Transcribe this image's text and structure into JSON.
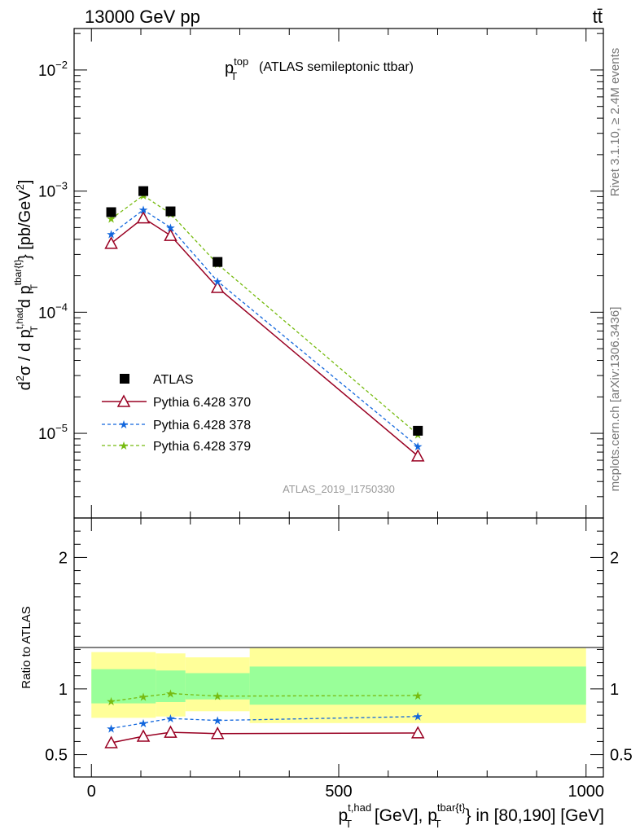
{
  "header": {
    "energy_label": "13000 GeV pp",
    "process_label": "tt̄"
  },
  "side_labels": {
    "rivet": "Rivet 3.1.10, ≥ 2.4M events",
    "mcplots": "mcplots.cern.ch [arXiv:1306.3436]"
  },
  "colors": {
    "atlas": "#000000",
    "p370": "#990022",
    "p378": "#1166dd",
    "p379": "#77bb11",
    "band_outer": "#ffff99",
    "band_inner": "#99ff99"
  },
  "chart_data": {
    "type": "line",
    "title": "(ATLAS semileptonic ttbar)",
    "title_symbol": "p_T^top",
    "analysis_tag": "ATLAS_2019_I1750330",
    "ylabel": "d²σ / d p_T^{t,had} d p_T^{tbar{t}} [pb/GeV²]",
    "xlabel": "p_T^{t,had} [GeV], p_T^{tbar{t}} in [80,190] [GeV]",
    "ratio_ylabel": "Ratio to ATLAS",
    "xlim": [
      -35,
      1035
    ],
    "ylim": [
      2e-06,
      0.022
    ],
    "yscale": "log",
    "ratio_ylim": [
      0.33,
      2.3
    ],
    "main_y_ticks": [
      {
        "value": 0.01,
        "base": "10",
        "exp": "−2"
      },
      {
        "value": 0.001,
        "base": "10",
        "exp": "−3"
      },
      {
        "value": 0.0001,
        "base": "10",
        "exp": "−4"
      },
      {
        "value": 1e-05,
        "base": "10",
        "exp": "−5"
      }
    ],
    "x_ticks": [
      {
        "value": 0,
        "label": "0"
      },
      {
        "value": 500,
        "label": "500"
      },
      {
        "value": 1000,
        "label": "1000"
      }
    ],
    "ratio_y_ticks": [
      {
        "value": 0.5,
        "label": "0.5"
      },
      {
        "value": 1,
        "label": "1"
      },
      {
        "value": 2,
        "label": "2"
      }
    ],
    "x": [
      40,
      105,
      160,
      255,
      660
    ],
    "series": [
      {
        "name": "ATLAS",
        "marker": "square",
        "values": [
          0.00067,
          0.001,
          0.00068,
          0.00026,
          1.05e-05
        ]
      },
      {
        "name": "Pythia 6.428 370",
        "marker": "triangle",
        "values": [
          0.00037,
          0.0006,
          0.00043,
          0.00016,
          6.5e-06
        ]
      },
      {
        "name": "Pythia 6.428 378",
        "marker": "star",
        "values": [
          0.00044,
          0.0007,
          0.0005,
          0.00018,
          7.8e-06
        ]
      },
      {
        "name": "Pythia 6.428 379",
        "marker": "star",
        "values": [
          0.00059,
          0.00092,
          0.00065,
          0.00025,
          9.8e-06
        ]
      }
    ],
    "ratio_series": [
      {
        "name": "Pythia 6.428 370",
        "values": [
          0.59,
          0.64,
          0.67,
          0.66,
          0.665
        ]
      },
      {
        "name": "Pythia 6.428 378",
        "values": [
          0.7,
          0.74,
          0.775,
          0.76,
          0.79
        ]
      },
      {
        "name": "Pythia 6.428 379",
        "values": [
          0.905,
          0.94,
          0.965,
          0.945,
          0.95
        ]
      }
    ],
    "bands": [
      {
        "x0": 0,
        "x1": 130,
        "inner": [
          0.89,
          1.15
        ],
        "outer": [
          0.78,
          1.28
        ]
      },
      {
        "x0": 130,
        "x1": 190,
        "inner": [
          0.9,
          1.14
        ],
        "outer": [
          0.79,
          1.27
        ]
      },
      {
        "x0": 190,
        "x1": 320,
        "inner": [
          0.92,
          1.12
        ],
        "outer": [
          0.83,
          1.24
        ]
      },
      {
        "x0": 320,
        "x1": 1000,
        "inner": [
          0.88,
          1.17
        ],
        "outer": [
          0.74,
          1.31
        ]
      }
    ]
  }
}
